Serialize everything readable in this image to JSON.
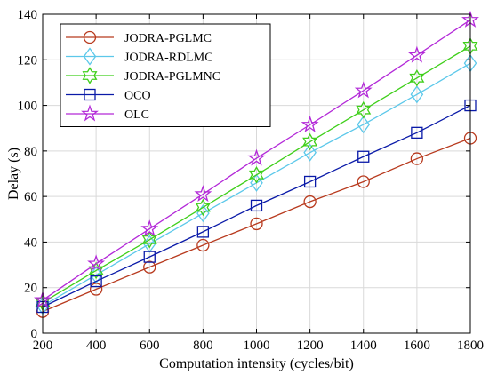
{
  "chart_data": {
    "type": "line",
    "title": "",
    "xlabel": "Computation intensity (cycles/bit)",
    "ylabel": "Delay (s)",
    "x": [
      200,
      400,
      600,
      800,
      1000,
      1200,
      1400,
      1600,
      1800
    ],
    "xlim": [
      200,
      1800
    ],
    "ylim": [
      0,
      140
    ],
    "xticks": [
      200,
      400,
      600,
      800,
      1000,
      1200,
      1400,
      1600,
      1800
    ],
    "yticks": [
      0,
      20,
      40,
      60,
      80,
      100,
      120,
      140
    ],
    "grid": true,
    "legend_position": "top-left",
    "series": [
      {
        "name": "JODRA-PGLMC",
        "color": "#b83a1e",
        "marker": "circle",
        "values": [
          9.5,
          19.3,
          29,
          38.6,
          48,
          57.7,
          66.5,
          76.6,
          85.6
        ]
      },
      {
        "name": "JODRA-RDLMC",
        "color": "#5cc8ea",
        "marker": "diamond",
        "values": [
          12,
          25.6,
          39.2,
          52.6,
          66,
          79.3,
          91.6,
          104.8,
          118.5
        ]
      },
      {
        "name": "JODRA-PGLMNC",
        "color": "#3fcf1a",
        "marker": "hexagram",
        "values": [
          13.5,
          27.5,
          41,
          55.2,
          69.5,
          84,
          98,
          112,
          126
        ]
      },
      {
        "name": "OCO",
        "color": "#0a1aa8",
        "marker": "square",
        "values": [
          11.5,
          22.8,
          33.5,
          44.5,
          56,
          66.5,
          77.5,
          88,
          100
        ]
      },
      {
        "name": "OLC",
        "color": "#b329d8",
        "marker": "pentagram",
        "values": [
          14.5,
          30.5,
          45.8,
          61,
          76.8,
          91.5,
          106.5,
          122,
          137.5
        ]
      }
    ]
  }
}
